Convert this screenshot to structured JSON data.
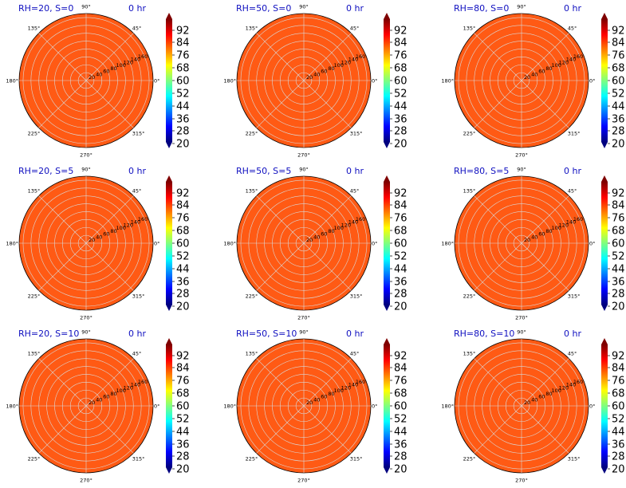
{
  "figure": {
    "fill_color": "#ff5a14",
    "grid_color": "#d9d9d9",
    "title_color": "#1010c0",
    "angle_labels": [
      "0°",
      "45°",
      "90°",
      "135°",
      "180°",
      "225°",
      "270°",
      "315°"
    ],
    "radial_tick_labels": [
      "20",
      "40",
      "60",
      "80",
      "100",
      "120",
      "140",
      "160"
    ],
    "colorbar_ticks": [
      "92",
      "84",
      "76",
      "68",
      "60",
      "52",
      "44",
      "36",
      "28",
      "20"
    ],
    "colormap": [
      "#00007f",
      "#0000ff",
      "#007fff",
      "#00ffff",
      "#7fff7f",
      "#ffff00",
      "#ff7f00",
      "#ff0000",
      "#7f0000"
    ]
  },
  "chart_data": [
    {
      "type": "heatmap",
      "projection": "polar",
      "title": "RH=20, S=0",
      "time_label": "0 hr",
      "rlim": [
        0,
        170
      ],
      "rticks": [
        20,
        40,
        60,
        80,
        100,
        120,
        140,
        160
      ],
      "value_range": [
        20,
        100
      ],
      "approx_value": 84,
      "colorbar_ticks": [
        92,
        84,
        76,
        68,
        60,
        52,
        44,
        36,
        28,
        20
      ]
    },
    {
      "type": "heatmap",
      "projection": "polar",
      "title": "RH=50, S=0",
      "time_label": "0 hr",
      "rlim": [
        0,
        170
      ],
      "rticks": [
        20,
        40,
        60,
        80,
        100,
        120,
        140,
        160
      ],
      "value_range": [
        20,
        100
      ],
      "approx_value": 84,
      "colorbar_ticks": [
        92,
        84,
        76,
        68,
        60,
        52,
        44,
        36,
        28,
        20
      ]
    },
    {
      "type": "heatmap",
      "projection": "polar",
      "title": "RH=80, S=0",
      "time_label": "0 hr",
      "rlim": [
        0,
        170
      ],
      "rticks": [
        20,
        40,
        60,
        80,
        100,
        120,
        140,
        160
      ],
      "value_range": [
        20,
        100
      ],
      "approx_value": 84,
      "colorbar_ticks": [
        92,
        84,
        76,
        68,
        60,
        52,
        44,
        36,
        28,
        20
      ]
    },
    {
      "type": "heatmap",
      "projection": "polar",
      "title": "RH=20, S=5",
      "time_label": "0 hr",
      "rlim": [
        0,
        170
      ],
      "rticks": [
        20,
        40,
        60,
        80,
        100,
        120,
        140,
        160
      ],
      "value_range": [
        20,
        100
      ],
      "approx_value": 84,
      "colorbar_ticks": [
        92,
        84,
        76,
        68,
        60,
        52,
        44,
        36,
        28,
        20
      ]
    },
    {
      "type": "heatmap",
      "projection": "polar",
      "title": "RH=50, S=5",
      "time_label": "0 hr",
      "rlim": [
        0,
        170
      ],
      "rticks": [
        20,
        40,
        60,
        80,
        100,
        120,
        140,
        160
      ],
      "value_range": [
        20,
        100
      ],
      "approx_value": 84,
      "colorbar_ticks": [
        92,
        84,
        76,
        68,
        60,
        52,
        44,
        36,
        28,
        20
      ]
    },
    {
      "type": "heatmap",
      "projection": "polar",
      "title": "RH=80, S=5",
      "time_label": "0 hr",
      "rlim": [
        0,
        170
      ],
      "rticks": [
        20,
        40,
        60,
        80,
        100,
        120,
        140,
        160
      ],
      "value_range": [
        20,
        100
      ],
      "approx_value": 84,
      "colorbar_ticks": [
        92,
        84,
        76,
        68,
        60,
        52,
        44,
        36,
        28,
        20
      ]
    },
    {
      "type": "heatmap",
      "projection": "polar",
      "title": "RH=20, S=10",
      "time_label": "0 hr",
      "rlim": [
        0,
        170
      ],
      "rticks": [
        20,
        40,
        60,
        80,
        100,
        120,
        140,
        160
      ],
      "value_range": [
        20,
        100
      ],
      "approx_value": 84,
      "colorbar_ticks": [
        92,
        84,
        76,
        68,
        60,
        52,
        44,
        36,
        28,
        20
      ]
    },
    {
      "type": "heatmap",
      "projection": "polar",
      "title": "RH=50, S=10",
      "time_label": "0 hr",
      "rlim": [
        0,
        170
      ],
      "rticks": [
        20,
        40,
        60,
        80,
        100,
        120,
        140,
        160
      ],
      "value_range": [
        20,
        100
      ],
      "approx_value": 84,
      "colorbar_ticks": [
        92,
        84,
        76,
        68,
        60,
        52,
        44,
        36,
        28,
        20
      ]
    },
    {
      "type": "heatmap",
      "projection": "polar",
      "title": "RH=80, S=10",
      "time_label": "0 hr",
      "rlim": [
        0,
        170
      ],
      "rticks": [
        20,
        40,
        60,
        80,
        100,
        120,
        140,
        160
      ],
      "value_range": [
        20,
        100
      ],
      "approx_value": 84,
      "colorbar_ticks": [
        92,
        84,
        76,
        68,
        60,
        52,
        44,
        36,
        28,
        20
      ]
    }
  ]
}
